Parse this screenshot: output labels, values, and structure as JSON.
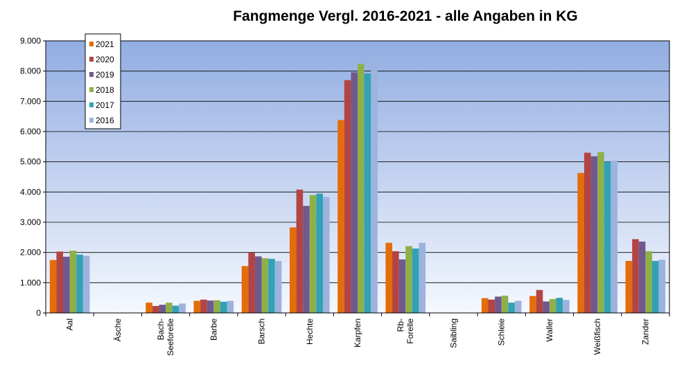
{
  "chart_data": {
    "type": "bar",
    "title": "Fangmenge Vergl. 2016-2021 - alle Angaben in KG",
    "xlabel": "",
    "ylabel": "",
    "ylim": [
      0,
      9000
    ],
    "yticks": [
      0,
      1000,
      2000,
      3000,
      4000,
      5000,
      6000,
      7000,
      8000,
      9000
    ],
    "ytick_labels": [
      "0",
      "1.000",
      "2.000",
      "3.000",
      "4.000",
      "5.000",
      "6.000",
      "7.000",
      "8.000",
      "9.000"
    ],
    "grid": true,
    "legend_position": "top-left",
    "categories": [
      [
        "Aal"
      ],
      [
        "Äsche"
      ],
      [
        "Bach-",
        "Seeforelle"
      ],
      [
        "Barbe"
      ],
      [
        "Barsch"
      ],
      [
        "Hechte"
      ],
      [
        "Karpfen"
      ],
      [
        "Rb-",
        "Forelle"
      ],
      [
        "Saibling"
      ],
      [
        "Schleie"
      ],
      [
        "Waller"
      ],
      [
        "Weißfisch"
      ],
      [
        "Zander"
      ]
    ],
    "series": [
      {
        "name": "2021",
        "color": "#E46C0A",
        "values": [
          1750,
          10,
          340,
          400,
          1550,
          2830,
          6380,
          2320,
          10,
          490,
          560,
          4630,
          1720
        ]
      },
      {
        "name": "2020",
        "color": "#B24543",
        "values": [
          2030,
          10,
          230,
          440,
          1990,
          4080,
          7700,
          2040,
          10,
          440,
          760,
          5300,
          2440
        ]
      },
      {
        "name": "2019",
        "color": "#71588F",
        "values": [
          1860,
          10,
          270,
          410,
          1870,
          3540,
          7960,
          1770,
          10,
          540,
          380,
          5180,
          2360
        ]
      },
      {
        "name": "2018",
        "color": "#8EB04A",
        "values": [
          2060,
          10,
          340,
          420,
          1810,
          3900,
          8240,
          2210,
          10,
          570,
          460,
          5320,
          2040
        ]
      },
      {
        "name": "2017",
        "color": "#31A1B8",
        "values": [
          1930,
          10,
          240,
          370,
          1790,
          3950,
          7920,
          2130,
          10,
          340,
          500,
          5000,
          1720
        ]
      },
      {
        "name": "2016",
        "color": "#9CB3DD",
        "values": [
          1890,
          10,
          310,
          400,
          1720,
          3840,
          8320,
          2320,
          10,
          400,
          430,
          5040,
          1760
        ]
      }
    ]
  }
}
